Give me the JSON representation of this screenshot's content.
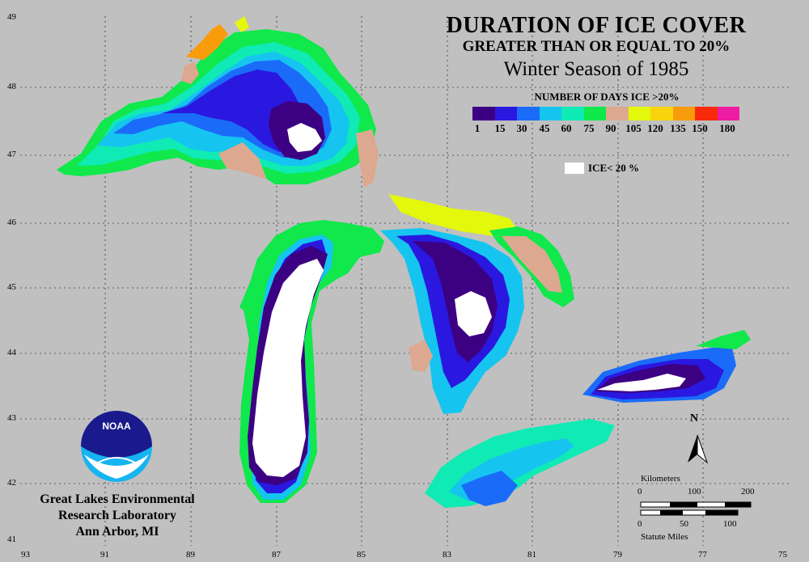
{
  "title": {
    "line1": "DURATION OF ICE COVER",
    "line2": "GREATER THAN OR EQUAL TO 20%",
    "line3": "Winter Season of 1985"
  },
  "legend": {
    "title": "NUMBER OF DAYS ICE >20%",
    "colors": [
      "#3c0082",
      "#2a18e0",
      "#1a6cf8",
      "#16c4f0",
      "#10eab4",
      "#10e84c",
      "#dca890",
      "#e4f80c",
      "#f8d40c",
      "#f89c0c",
      "#f82a0c",
      "#ee1ca0"
    ],
    "ticks": [
      "1",
      "15",
      "30",
      "45",
      "60",
      "75",
      "90",
      "105",
      "120",
      "135",
      "150",
      "180"
    ],
    "ice_label": "ICE< 20 %"
  },
  "axes": {
    "lon_ticks": [
      "93",
      "91",
      "89",
      "87",
      "85",
      "83",
      "81",
      "79",
      "77",
      "75"
    ],
    "lat_ticks": [
      "49",
      "48",
      "47",
      "46",
      "45",
      "44",
      "43",
      "42",
      "41"
    ]
  },
  "org": {
    "line1": "Great Lakes Environmental",
    "line2": "Research Laboratory",
    "line3": "Ann Arbor, MI",
    "logo_text": "NOAA"
  },
  "scale": {
    "km_label": "Kilometers",
    "km_ticks": [
      "0",
      "100",
      "200"
    ],
    "mi_ticks": [
      "0",
      "50",
      "100"
    ],
    "mi_label": "Statute Miles"
  },
  "north": "N",
  "colors": {
    "background": "#c0c0c0",
    "ice_lt_20": "#ffffff",
    "grid": "#000000"
  }
}
